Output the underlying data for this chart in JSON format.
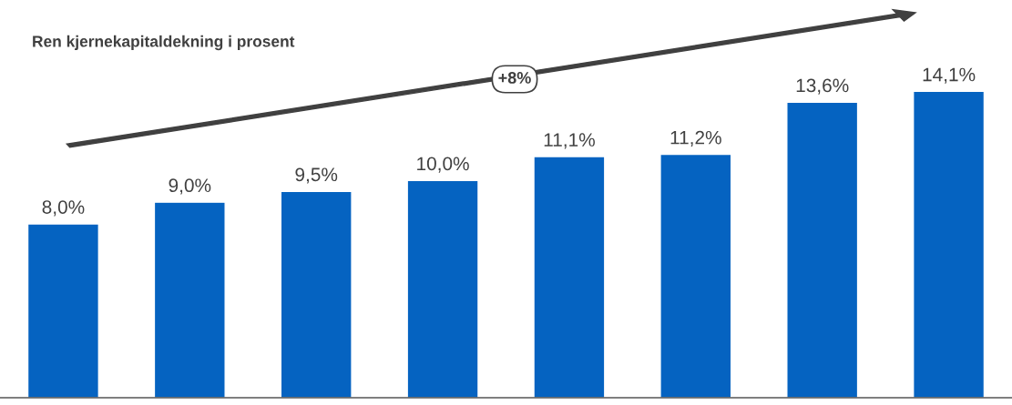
{
  "chart_data": {
    "type": "bar",
    "title": "Ren kjernekapitaldekning i prosent",
    "categories": [
      null,
      null,
      null,
      null,
      null,
      null,
      null,
      null
    ],
    "values": [
      8.0,
      9.0,
      9.5,
      10.0,
      11.1,
      11.2,
      13.6,
      14.1
    ],
    "value_labels": [
      "8,0%",
      "9,0%",
      "9,5%",
      "10,0%",
      "11,1%",
      "11,2%",
      "13,6%",
      "14,1%"
    ],
    "color": "#0563c1",
    "annotations": [
      "+8%"
    ],
    "grid": false,
    "legend": false
  }
}
